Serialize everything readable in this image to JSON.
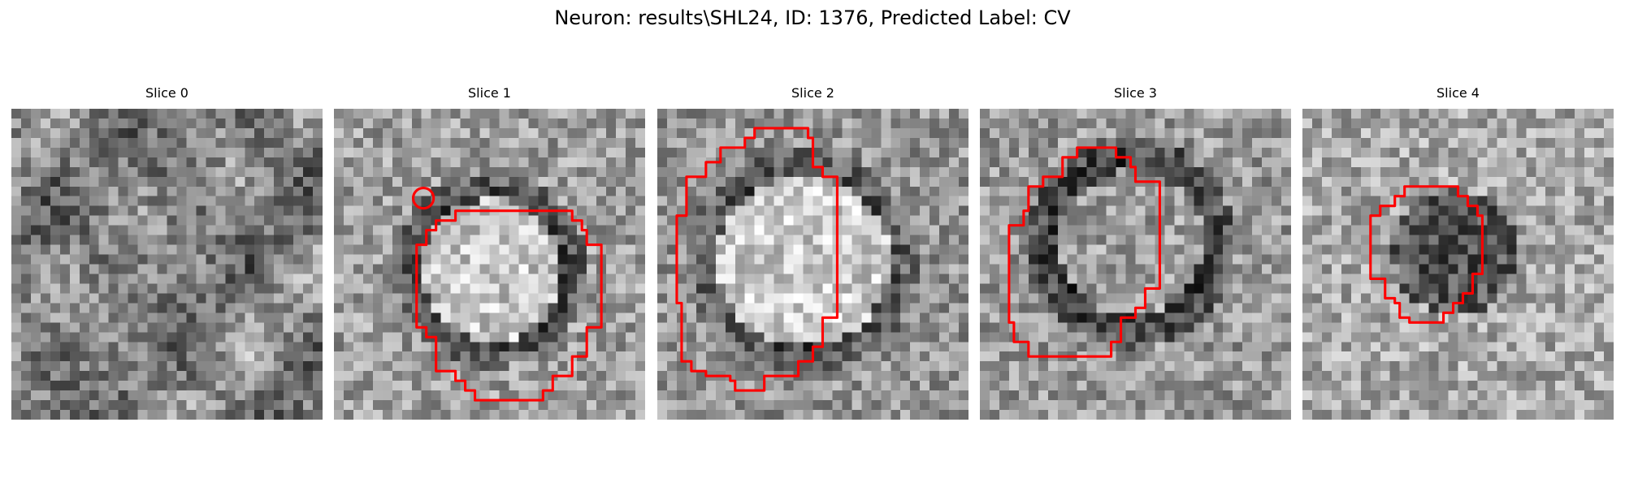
{
  "figure": {
    "title": "Neuron: results\\SHL24, ID: 1376, Predicted Label: CV"
  },
  "slices": [
    {
      "label": "Slice 0",
      "has_contour": false,
      "contour_color": "#ff0000",
      "pixel_seed": 11
    },
    {
      "label": "Slice 1",
      "has_contour": true,
      "contour_color": "#ff0000",
      "pixel_seed": 23
    },
    {
      "label": "Slice 2",
      "has_contour": true,
      "contour_color": "#ff0000",
      "pixel_seed": 37
    },
    {
      "label": "Slice 3",
      "has_contour": true,
      "contour_color": "#ff0000",
      "pixel_seed": 51
    },
    {
      "label": "Slice 4",
      "has_contour": true,
      "contour_color": "#ff0000",
      "pixel_seed": 67
    }
  ],
  "image": {
    "grid_size": 32,
    "colormap": "gray"
  }
}
